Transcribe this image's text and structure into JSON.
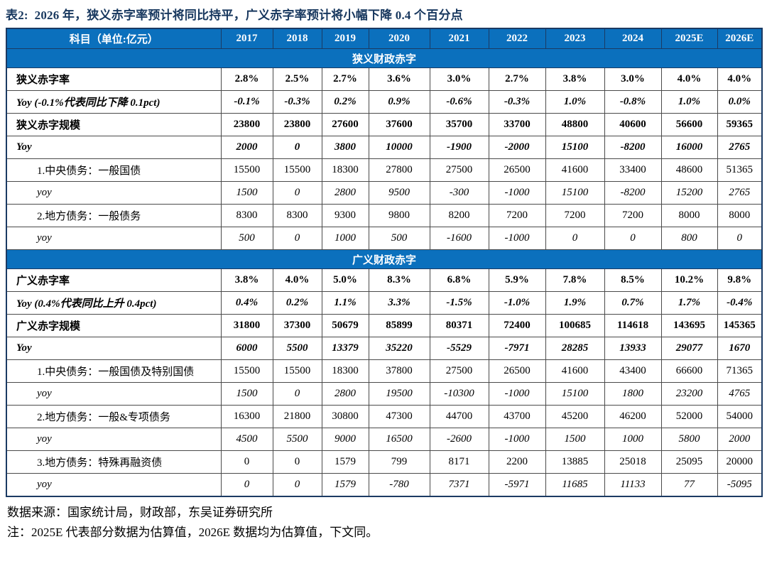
{
  "title": "表2:  2026 年，狭义赤字率预计将同比持平，广义赤字率预计将小幅下降 0.4 个百分点",
  "colors": {
    "header_blue": "#0b70bd",
    "title_navy": "#17375e",
    "border_dark": "#4a4a4a",
    "border_navy": "#1b3a63"
  },
  "table": {
    "unit_header": "科目（单位:亿元）",
    "year_columns": [
      "2017",
      "2018",
      "2019",
      "2020",
      "2021",
      "2022",
      "2023",
      "2024",
      "2025E",
      "2026E"
    ],
    "rows": [
      {
        "section": "狭义财政赤字"
      },
      {
        "label": "狭义赤字率",
        "emphasis": "bold",
        "indent": 0,
        "values": [
          "2.8%",
          "2.5%",
          "2.7%",
          "3.6%",
          "3.0%",
          "2.7%",
          "3.8%",
          "3.0%",
          "4.0%",
          "4.0%"
        ]
      },
      {
        "label": "Yoy (-0.1%代表同比下降 0.1pct)",
        "emphasis": "bold-italic",
        "indent": 0,
        "values": [
          "-0.1%",
          "-0.3%",
          "0.2%",
          "0.9%",
          "-0.6%",
          "-0.3%",
          "1.0%",
          "-0.8%",
          "1.0%",
          "0.0%"
        ]
      },
      {
        "label": "狭义赤字规模",
        "emphasis": "bold",
        "indent": 0,
        "values": [
          "23800",
          "23800",
          "27600",
          "37600",
          "35700",
          "33700",
          "48800",
          "40600",
          "56600",
          "59365"
        ]
      },
      {
        "label": "Yoy",
        "emphasis": "bold-italic",
        "indent": 0,
        "values": [
          "2000",
          "0",
          "3800",
          "10000",
          "-1900",
          "-2000",
          "15100",
          "-8200",
          "16000",
          "2765"
        ]
      },
      {
        "label": "1.中央债务：一般国债",
        "emphasis": "normal",
        "indent": 1,
        "values": [
          "15500",
          "15500",
          "18300",
          "27800",
          "27500",
          "26500",
          "41600",
          "33400",
          "48600",
          "51365"
        ]
      },
      {
        "label": "yoy",
        "emphasis": "italic",
        "indent": 1,
        "values": [
          "1500",
          "0",
          "2800",
          "9500",
          "-300",
          "-1000",
          "15100",
          "-8200",
          "15200",
          "2765"
        ]
      },
      {
        "label": "2.地方债务：一般债务",
        "emphasis": "normal",
        "indent": 1,
        "values": [
          "8300",
          "8300",
          "9300",
          "9800",
          "8200",
          "7200",
          "7200",
          "7200",
          "8000",
          "8000"
        ]
      },
      {
        "label": "yoy",
        "emphasis": "italic",
        "indent": 1,
        "values": [
          "500",
          "0",
          "1000",
          "500",
          "-1600",
          "-1000",
          "0",
          "0",
          "800",
          "0"
        ]
      },
      {
        "section": "广义财政赤字"
      },
      {
        "label": "广义赤字率",
        "emphasis": "bold",
        "indent": 0,
        "values": [
          "3.8%",
          "4.0%",
          "5.0%",
          "8.3%",
          "6.8%",
          "5.9%",
          "7.8%",
          "8.5%",
          "10.2%",
          "9.8%"
        ]
      },
      {
        "label": "Yoy (0.4%代表同比上升 0.4pct)",
        "emphasis": "bold-italic",
        "indent": 0,
        "values": [
          "0.4%",
          "0.2%",
          "1.1%",
          "3.3%",
          "-1.5%",
          "-1.0%",
          "1.9%",
          "0.7%",
          "1.7%",
          "-0.4%"
        ]
      },
      {
        "label": "广义赤字规模",
        "emphasis": "bold",
        "indent": 0,
        "values": [
          "31800",
          "37300",
          "50679",
          "85899",
          "80371",
          "72400",
          "100685",
          "114618",
          "143695",
          "145365"
        ]
      },
      {
        "label": "Yoy",
        "emphasis": "bold-italic",
        "indent": 0,
        "values": [
          "6000",
          "5500",
          "13379",
          "35220",
          "-5529",
          "-7971",
          "28285",
          "13933",
          "29077",
          "1670"
        ]
      },
      {
        "label": "1.中央债务：一般国债及特别国债",
        "emphasis": "normal",
        "indent": 1,
        "values": [
          "15500",
          "15500",
          "18300",
          "37800",
          "27500",
          "26500",
          "41600",
          "43400",
          "66600",
          "71365"
        ]
      },
      {
        "label": "yoy",
        "emphasis": "italic",
        "indent": 1,
        "values": [
          "1500",
          "0",
          "2800",
          "19500",
          "-10300",
          "-1000",
          "15100",
          "1800",
          "23200",
          "4765"
        ]
      },
      {
        "label": "2.地方债务：一般&专项债务",
        "emphasis": "normal",
        "indent": 1,
        "values": [
          "16300",
          "21800",
          "30800",
          "47300",
          "44700",
          "43700",
          "45200",
          "46200",
          "52000",
          "54000"
        ]
      },
      {
        "label": "yoy",
        "emphasis": "italic",
        "indent": 1,
        "values": [
          "4500",
          "5500",
          "9000",
          "16500",
          "-2600",
          "-1000",
          "1500",
          "1000",
          "5800",
          "2000"
        ]
      },
      {
        "label": "3.地方债务：特殊再融资债",
        "emphasis": "normal",
        "indent": 1,
        "values": [
          "0",
          "0",
          "1579",
          "799",
          "8171",
          "2200",
          "13885",
          "25018",
          "25095",
          "20000"
        ]
      },
      {
        "label": "yoy",
        "emphasis": "italic",
        "indent": 1,
        "values": [
          "0",
          "0",
          "1579",
          "-780",
          "7371",
          "-5971",
          "11685",
          "11133",
          "77",
          "-5095"
        ]
      }
    ]
  },
  "footer": {
    "source": "数据来源：国家统计局，财政部，东吴证券研究所",
    "note": "注：2025E 代表部分数据为估算值，2026E 数据均为估算值，下文同。"
  }
}
